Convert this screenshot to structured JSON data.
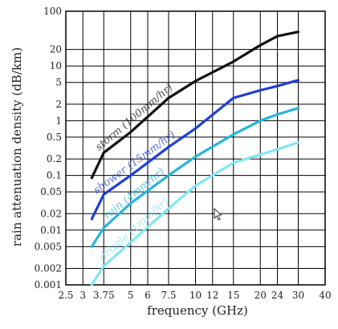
{
  "chart_data": {
    "type": "line",
    "title": "",
    "xlabel": "frequency (GHz)",
    "ylabel": "rain attenuation density (dB/km)",
    "x_scale": "log",
    "y_scale": "log",
    "xlim": [
      2.5,
      40
    ],
    "ylim": [
      0.001,
      100
    ],
    "grid": true,
    "x_ticks": [
      2.5,
      3,
      3.75,
      5,
      6,
      7.5,
      10,
      12,
      15,
      20,
      24,
      30,
      40
    ],
    "x_tick_labels": [
      "2.5",
      "3",
      "3.75",
      "5",
      "6",
      "7.5",
      "10",
      "12",
      "15",
      "20",
      "24",
      "30",
      "40"
    ],
    "y_ticks": [
      0.001,
      0.002,
      0.005,
      0.01,
      0.02,
      0.05,
      0.1,
      0.2,
      0.5,
      1,
      2,
      5,
      10,
      20,
      100
    ],
    "y_tick_labels": [
      "0.001",
      "0.002",
      "0.005",
      "0.01",
      "0.02",
      "0.05",
      "0.1",
      "0.2",
      "0.5",
      "1",
      "2",
      "5",
      "10",
      "20",
      "100"
    ],
    "series": [
      {
        "name": "storm (100mm/hr)",
        "color": "#111111",
        "x": [
          3.3,
          3.75,
          5,
          7.5,
          10,
          15,
          20,
          24,
          30
        ],
        "y": [
          0.09,
          0.26,
          0.62,
          2.6,
          5.3,
          12,
          24,
          35,
          42
        ]
      },
      {
        "name": "shower (15mm/hr)",
        "color": "#1f3fd8",
        "x": [
          3.3,
          3.75,
          5,
          7.5,
          10,
          15,
          20,
          24,
          30
        ],
        "y": [
          0.016,
          0.045,
          0.1,
          0.33,
          0.72,
          2.6,
          3.6,
          4.3,
          5.5
        ]
      },
      {
        "name": "rain (4mm/hr)",
        "color": "#25b6d8",
        "x": [
          3.3,
          3.75,
          5,
          7.5,
          10,
          15,
          20,
          24,
          30
        ],
        "y": [
          0.005,
          0.011,
          0.031,
          0.1,
          0.22,
          0.56,
          1.0,
          1.3,
          1.7
        ]
      },
      {
        "name": "drizzle (1mm/hr)",
        "color": "#7fe8f3",
        "x": [
          3.3,
          3.75,
          5,
          7.5,
          10,
          15,
          20,
          24,
          30
        ],
        "y": [
          0.001,
          0.0022,
          0.006,
          0.025,
          0.065,
          0.17,
          0.24,
          0.3,
          0.4
        ]
      }
    ]
  },
  "colors": {
    "grid": "#000000",
    "frame": "#000000",
    "background": "#ffffff"
  },
  "cursor_icon": "mouse-pointer-icon"
}
